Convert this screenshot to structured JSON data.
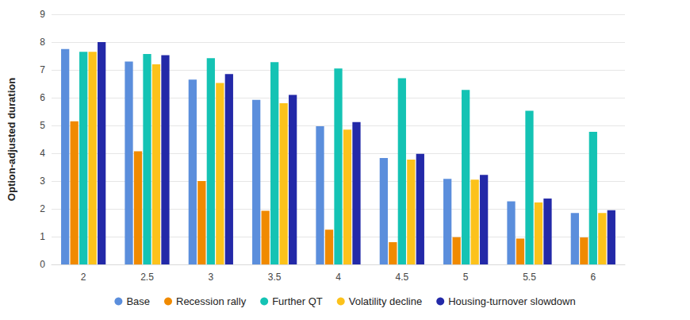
{
  "chart_data": {
    "type": "bar",
    "y_label": "Option-adjusted duration",
    "categories": [
      "2",
      "2.5",
      "3",
      "3.5",
      "4",
      "4.5",
      "5",
      "5.5",
      "6"
    ],
    "series": [
      {
        "name": "Base",
        "color": "#5b8edc",
        "values": [
          7.75,
          7.3,
          6.65,
          5.92,
          4.97,
          3.83,
          3.08,
          2.27,
          1.85
        ]
      },
      {
        "name": "Recession rally",
        "color": "#f08a00",
        "values": [
          5.15,
          4.07,
          3.0,
          1.93,
          1.25,
          0.8,
          0.98,
          0.93,
          0.97
        ]
      },
      {
        "name": "Further QT",
        "color": "#14c3b4",
        "values": [
          7.65,
          7.57,
          7.42,
          7.28,
          7.05,
          6.7,
          6.28,
          5.53,
          4.77
        ]
      },
      {
        "name": "Volatility decline",
        "color": "#fcc21b",
        "values": [
          7.65,
          7.2,
          6.53,
          5.8,
          4.85,
          3.77,
          3.05,
          2.23,
          1.85
        ]
      },
      {
        "name": "Housing-turnover slowdown",
        "color": "#2329a8",
        "values": [
          8.0,
          7.53,
          6.85,
          6.1,
          5.12,
          3.98,
          3.22,
          2.37,
          1.95
        ]
      }
    ],
    "ylim": [
      0,
      9
    ],
    "yticks": [
      0,
      1,
      2,
      3,
      4,
      5,
      6,
      7,
      8,
      9
    ],
    "grid": true,
    "legend": "bottom"
  }
}
